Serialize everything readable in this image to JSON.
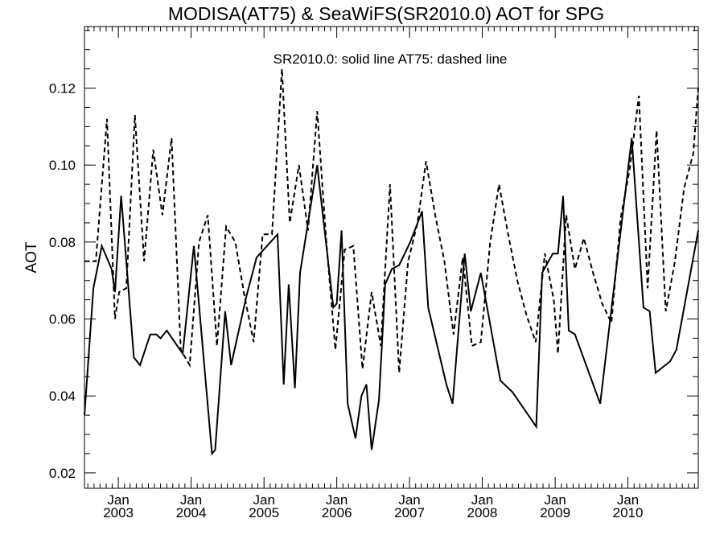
{
  "chart_data": {
    "type": "line",
    "title": "MODISA(AT75) & SeaWiFS(SR2010.0)  AOT for SPG",
    "annotation": "SR2010.0: solid line   AT75: dashed line",
    "xlabel": "",
    "ylabel": "AOT",
    "xlim": [
      "2002-07-15",
      "2010-12-20"
    ],
    "ylim": [
      0.016,
      0.136
    ],
    "yticks": [
      0.02,
      0.04,
      0.06,
      0.08,
      0.1,
      0.12
    ],
    "ytick_labels": [
      "0.02",
      "0.04",
      "0.06",
      "0.08",
      "0.10",
      "0.12"
    ],
    "xticks": [
      {
        "date": "2003-01-01",
        "line1": "Jan",
        "line2": "2003"
      },
      {
        "date": "2004-01-01",
        "line1": "Jan",
        "line2": "2004"
      },
      {
        "date": "2005-01-01",
        "line1": "Jan",
        "line2": "2005"
      },
      {
        "date": "2006-01-01",
        "line1": "Jan",
        "line2": "2006"
      },
      {
        "date": "2007-01-01",
        "line1": "Jan",
        "line2": "2007"
      },
      {
        "date": "2008-01-01",
        "line1": "Jan",
        "line2": "2008"
      },
      {
        "date": "2009-01-01",
        "line1": "Jan",
        "line2": "2009"
      },
      {
        "date": "2010-01-01",
        "line1": "Jan",
        "line2": "2010"
      }
    ],
    "grid": false,
    "color": "#000000",
    "series": [
      {
        "style": "solid",
        "points": [
          [
            "2002-07-15",
            0.035
          ],
          [
            "2002-08-29",
            0.068
          ],
          [
            "2002-10-10",
            0.079
          ],
          [
            "2002-11-28",
            0.073
          ],
          [
            "2002-12-15",
            0.067
          ],
          [
            "2003-01-15",
            0.092
          ],
          [
            "2003-03-20",
            0.05
          ],
          [
            "2003-04-20",
            0.048
          ],
          [
            "2003-06-10",
            0.056
          ],
          [
            "2003-07-10",
            0.056
          ],
          [
            "2003-08-01",
            0.055
          ],
          [
            "2003-09-01",
            0.057
          ],
          [
            "2003-11-20",
            0.051
          ],
          [
            "2004-01-15",
            0.079
          ],
          [
            "2004-04-15",
            0.025
          ],
          [
            "2004-05-01",
            0.026
          ],
          [
            "2004-06-20",
            0.062
          ],
          [
            "2004-07-20",
            0.048
          ],
          [
            "2004-10-05",
            0.066
          ],
          [
            "2004-11-25",
            0.076
          ],
          [
            "2005-03-10",
            0.082
          ],
          [
            "2005-04-10",
            0.043
          ],
          [
            "2005-05-05",
            0.069
          ],
          [
            "2005-06-05",
            0.042
          ],
          [
            "2005-07-01",
            0.072
          ],
          [
            "2005-09-25",
            0.1
          ],
          [
            "2005-12-15",
            0.063
          ],
          [
            "2006-01-01",
            0.064
          ],
          [
            "2006-01-25",
            0.083
          ],
          [
            "2006-02-25",
            0.038
          ],
          [
            "2006-04-05",
            0.029
          ],
          [
            "2006-05-05",
            0.04
          ],
          [
            "2006-05-30",
            0.043
          ],
          [
            "2006-06-25",
            0.026
          ],
          [
            "2006-08-01",
            0.039
          ],
          [
            "2006-09-01",
            0.069
          ],
          [
            "2006-10-05",
            0.073
          ],
          [
            "2006-11-10",
            0.074
          ],
          [
            "2007-01-05",
            0.08
          ],
          [
            "2007-03-05",
            0.088
          ],
          [
            "2007-04-05",
            0.063
          ],
          [
            "2007-07-05",
            0.043
          ],
          [
            "2007-08-05",
            0.038
          ],
          [
            "2007-10-05",
            0.077
          ],
          [
            "2007-11-05",
            0.062
          ],
          [
            "2007-12-25",
            0.072
          ],
          [
            "2008-04-01",
            0.044
          ],
          [
            "2008-06-01",
            0.041
          ],
          [
            "2008-09-28",
            0.032
          ],
          [
            "2008-10-28",
            0.072
          ],
          [
            "2008-12-20",
            0.077
          ],
          [
            "2009-01-15",
            0.077
          ],
          [
            "2009-02-10",
            0.092
          ],
          [
            "2009-03-10",
            0.057
          ],
          [
            "2009-04-10",
            0.056
          ],
          [
            "2009-08-15",
            0.038
          ],
          [
            "2010-01-20",
            0.107
          ],
          [
            "2010-03-20",
            0.063
          ],
          [
            "2010-04-20",
            0.062
          ],
          [
            "2010-05-20",
            0.046
          ],
          [
            "2010-08-01",
            0.049
          ],
          [
            "2010-09-01",
            0.052
          ],
          [
            "2010-12-20",
            0.083
          ]
        ]
      },
      {
        "style": "dashed",
        "points": [
          [
            "2002-07-15",
            0.075
          ],
          [
            "2002-09-10",
            0.075
          ],
          [
            "2002-11-05",
            0.112
          ],
          [
            "2002-12-15",
            0.06
          ],
          [
            "2003-01-05",
            0.067
          ],
          [
            "2003-02-10",
            0.068
          ],
          [
            "2003-03-25",
            0.113
          ],
          [
            "2003-05-10",
            0.075
          ],
          [
            "2003-06-25",
            0.104
          ],
          [
            "2003-08-10",
            0.087
          ],
          [
            "2003-09-25",
            0.107
          ],
          [
            "2003-11-10",
            0.052
          ],
          [
            "2003-12-25",
            0.048
          ],
          [
            "2004-02-10",
            0.08
          ],
          [
            "2004-03-25",
            0.087
          ],
          [
            "2004-05-10",
            0.053
          ],
          [
            "2004-06-25",
            0.084
          ],
          [
            "2004-08-10",
            0.08
          ],
          [
            "2004-09-25",
            0.066
          ],
          [
            "2004-11-10",
            0.054
          ],
          [
            "2004-12-25",
            0.082
          ],
          [
            "2005-02-10",
            0.082
          ],
          [
            "2005-04-01",
            0.125
          ],
          [
            "2005-05-10",
            0.085
          ],
          [
            "2005-06-25",
            0.1
          ],
          [
            "2005-08-10",
            0.083
          ],
          [
            "2005-09-25",
            0.114
          ],
          [
            "2005-11-10",
            0.08
          ],
          [
            "2005-12-25",
            0.052
          ],
          [
            "2006-02-10",
            0.078
          ],
          [
            "2006-03-25",
            0.079
          ],
          [
            "2006-05-10",
            0.047
          ],
          [
            "2006-06-25",
            0.067
          ],
          [
            "2006-08-10",
            0.053
          ],
          [
            "2006-09-25",
            0.095
          ],
          [
            "2006-11-10",
            0.046
          ],
          [
            "2006-12-25",
            0.075
          ],
          [
            "2007-02-10",
            0.085
          ],
          [
            "2007-03-25",
            0.101
          ],
          [
            "2007-05-10",
            0.087
          ],
          [
            "2007-06-25",
            0.075
          ],
          [
            "2007-08-10",
            0.056
          ],
          [
            "2007-09-25",
            0.076
          ],
          [
            "2007-11-10",
            0.053
          ],
          [
            "2007-12-25",
            0.054
          ],
          [
            "2008-02-10",
            0.08
          ],
          [
            "2008-03-25",
            0.095
          ],
          [
            "2008-05-10",
            0.082
          ],
          [
            "2008-06-25",
            0.07
          ],
          [
            "2008-08-10",
            0.061
          ],
          [
            "2008-09-25",
            0.054
          ],
          [
            "2008-11-10",
            0.077
          ],
          [
            "2008-12-25",
            0.065
          ],
          [
            "2009-01-15",
            0.051
          ],
          [
            "2009-02-25",
            0.087
          ],
          [
            "2009-04-10",
            0.073
          ],
          [
            "2009-05-25",
            0.081
          ],
          [
            "2009-07-10",
            0.072
          ],
          [
            "2009-08-25",
            0.064
          ],
          [
            "2009-10-10",
            0.059
          ],
          [
            "2009-11-25",
            0.086
          ],
          [
            "2010-01-10",
            0.099
          ],
          [
            "2010-02-25",
            0.118
          ],
          [
            "2010-04-10",
            0.068
          ],
          [
            "2010-05-25",
            0.109
          ],
          [
            "2010-07-10",
            0.062
          ],
          [
            "2010-08-25",
            0.075
          ],
          [
            "2010-10-10",
            0.094
          ],
          [
            "2010-11-25",
            0.103
          ],
          [
            "2010-12-20",
            0.12
          ]
        ]
      }
    ]
  }
}
